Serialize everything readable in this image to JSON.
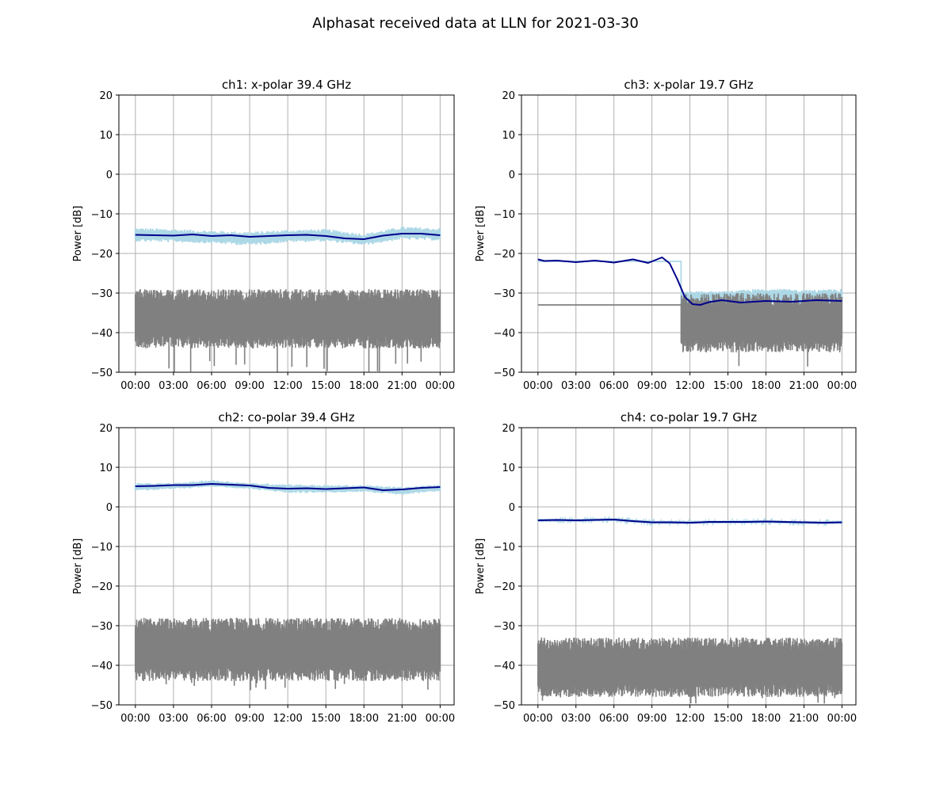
{
  "figure": {
    "title": "Alphasat received data at LLN for 2021-03-30",
    "colors": {
      "raw_signal": "#add8e6",
      "filtered_signal": "#00008b",
      "noise": "#808080",
      "grid": "#b0b0b0",
      "axes": "#000000"
    }
  },
  "chart_data": [
    {
      "type": "line",
      "title": "ch1: x-polar 39.4 GHz",
      "ylabel": "Power [dB]",
      "xlabel": "",
      "ylim": [
        -50,
        20
      ],
      "yticks": [
        -50,
        -40,
        -30,
        -20,
        -10,
        0,
        10,
        20
      ],
      "xlim_hours": [
        -1.3,
        25.1
      ],
      "xticks": [
        "00:00",
        "03:00",
        "06:00",
        "09:00",
        "12:00",
        "15:00",
        "18:00",
        "21:00",
        "00:00"
      ],
      "grid": true,
      "series": [
        {
          "role": "raw",
          "color": "#add8e6",
          "kind": "band",
          "x": [
            0,
            3,
            6,
            9,
            12,
            15,
            18,
            21,
            24
          ],
          "upper": [
            -13.5,
            -13.8,
            -14.2,
            -14.5,
            -14.0,
            -13.8,
            -15.0,
            -13.2,
            -13.6
          ],
          "lower": [
            -17.0,
            -17.2,
            -17.5,
            -18.0,
            -17.2,
            -17.0,
            -18.0,
            -16.5,
            -16.8
          ]
        },
        {
          "role": "filtered",
          "color": "#00008b",
          "kind": "line",
          "x": [
            0,
            1.5,
            3,
            4.5,
            6,
            7.5,
            9,
            10.5,
            12,
            13.5,
            15,
            16.5,
            18,
            19.5,
            21,
            22.5,
            24
          ],
          "y": [
            -15.3,
            -15.4,
            -15.5,
            -15.2,
            -15.6,
            -15.4,
            -15.8,
            -15.6,
            -15.4,
            -15.3,
            -15.6,
            -16.2,
            -16.4,
            -15.5,
            -15.0,
            -15.0,
            -15.4
          ]
        },
        {
          "role": "noise",
          "color": "#808080",
          "kind": "noise",
          "segments": [
            {
              "x0": 0,
              "x1": 24,
              "lo": -44,
              "hi": -29,
              "spike_min": -50
            }
          ]
        }
      ]
    },
    {
      "type": "line",
      "title": "ch3: x-polar 19.7 GHz",
      "ylabel": "Power [dB]",
      "xlabel": "",
      "ylim": [
        -50,
        20
      ],
      "yticks": [
        -50,
        -40,
        -30,
        -20,
        -10,
        0,
        10,
        20
      ],
      "xlim_hours": [
        -1.3,
        25.1
      ],
      "xticks": [
        "00:00",
        "03:00",
        "06:00",
        "09:00",
        "12:00",
        "15:00",
        "18:00",
        "21:00",
        "00:00"
      ],
      "grid": true,
      "series": [
        {
          "role": "raw",
          "color": "#add8e6",
          "kind": "step",
          "x": [
            0,
            11.3,
            11.3,
            11.6
          ],
          "y": [
            -22.0,
            -22.0,
            -31.0,
            -31.0
          ]
        },
        {
          "role": "raw",
          "color": "#add8e6",
          "kind": "band",
          "x": [
            11.3,
            12,
            15,
            18,
            21,
            24
          ],
          "upper": [
            -30.0,
            -29.5,
            -29.5,
            -28.8,
            -29.2,
            -29.0
          ],
          "lower": [
            -33.0,
            -33.5,
            -33.5,
            -33.0,
            -33.2,
            -33.0
          ]
        },
        {
          "role": "filtered",
          "color": "#00008b",
          "kind": "line",
          "x": [
            0,
            0.5,
            1.5,
            3,
            4.5,
            6,
            7.5,
            8.7,
            9.8,
            10.4,
            11.0,
            11.6,
            12.2,
            12.8,
            13.5,
            14.5,
            16,
            18,
            20,
            22,
            24
          ],
          "y": [
            -21.5,
            -21.9,
            -21.8,
            -22.2,
            -21.8,
            -22.3,
            -21.5,
            -22.4,
            -21.0,
            -22.5,
            -26.5,
            -31.0,
            -32.8,
            -33.0,
            -32.3,
            -31.8,
            -32.4,
            -32.0,
            -32.2,
            -31.8,
            -32.0
          ]
        },
        {
          "role": "noise",
          "color": "#808080",
          "kind": "flat",
          "x": [
            0,
            11.3
          ],
          "y": [
            -33,
            -33
          ]
        },
        {
          "role": "noise",
          "color": "#808080",
          "kind": "noise",
          "segments": [
            {
              "x0": 11.3,
              "x1": 24,
              "lo": -45,
              "hi": -30,
              "spike_min": -50
            }
          ]
        }
      ]
    },
    {
      "type": "line",
      "title": "ch2: co-polar 39.4 GHz",
      "ylabel": "Power [dB]",
      "xlabel": "",
      "ylim": [
        -50,
        20
      ],
      "yticks": [
        -50,
        -40,
        -30,
        -20,
        -10,
        0,
        10,
        20
      ],
      "xlim_hours": [
        -1.3,
        25.1
      ],
      "xticks": [
        "00:00",
        "03:00",
        "06:00",
        "09:00",
        "12:00",
        "15:00",
        "18:00",
        "21:00",
        "00:00"
      ],
      "grid": true,
      "series": [
        {
          "role": "raw",
          "color": "#add8e6",
          "kind": "band",
          "x": [
            0,
            3,
            6,
            9,
            12,
            15,
            18,
            21,
            24
          ],
          "upper": [
            6.0,
            6.0,
            6.8,
            6.0,
            5.8,
            5.5,
            5.5,
            5.0,
            5.6
          ],
          "lower": [
            4.0,
            4.5,
            5.0,
            4.5,
            3.5,
            3.5,
            3.8,
            3.0,
            4.0
          ]
        },
        {
          "role": "filtered",
          "color": "#00008b",
          "kind": "line",
          "x": [
            0,
            1.5,
            3,
            4.5,
            6,
            7.5,
            9,
            10.5,
            12,
            13.5,
            15,
            16.5,
            18,
            19.5,
            21,
            22.5,
            24
          ],
          "y": [
            5.2,
            5.3,
            5.5,
            5.5,
            5.8,
            5.6,
            5.4,
            4.8,
            4.6,
            4.7,
            4.5,
            4.7,
            4.9,
            4.2,
            4.4,
            4.8,
            5.0
          ]
        },
        {
          "role": "noise",
          "color": "#808080",
          "kind": "noise",
          "segments": [
            {
              "x0": 0,
              "x1": 24,
              "lo": -44,
              "hi": -28,
              "spike_min": -47
            }
          ]
        }
      ]
    },
    {
      "type": "line",
      "title": "ch4: co-polar 19.7 GHz",
      "ylabel": "Power [dB]",
      "xlabel": "",
      "ylim": [
        -50,
        20
      ],
      "yticks": [
        -50,
        -40,
        -30,
        -20,
        -10,
        0,
        10,
        20
      ],
      "xlim_hours": [
        -1.3,
        25.1
      ],
      "xticks": [
        "00:00",
        "03:00",
        "06:00",
        "09:00",
        "12:00",
        "15:00",
        "18:00",
        "21:00",
        "00:00"
      ],
      "grid": true,
      "series": [
        {
          "role": "raw",
          "color": "#add8e6",
          "kind": "band",
          "x": [
            0,
            3,
            6,
            9,
            12,
            15,
            18,
            21,
            24
          ],
          "upper": [
            -3.0,
            -3.0,
            -2.8,
            -3.5,
            -3.5,
            -3.4,
            -3.3,
            -3.6,
            -3.5
          ],
          "lower": [
            -3.8,
            -3.8,
            -3.6,
            -4.3,
            -4.3,
            -4.2,
            -4.1,
            -4.4,
            -4.3
          ]
        },
        {
          "role": "filtered",
          "color": "#00008b",
          "kind": "line",
          "x": [
            0,
            1.5,
            3,
            4.5,
            6,
            7.5,
            9,
            10.5,
            12,
            13.5,
            15,
            16.5,
            18,
            19.5,
            21,
            22.5,
            24
          ],
          "y": [
            -3.4,
            -3.3,
            -3.4,
            -3.3,
            -3.2,
            -3.6,
            -3.9,
            -3.9,
            -4.0,
            -3.8,
            -3.8,
            -3.8,
            -3.7,
            -3.8,
            -3.9,
            -4.0,
            -3.9
          ]
        },
        {
          "role": "noise",
          "color": "#808080",
          "kind": "noise",
          "segments": [
            {
              "x0": 0,
              "x1": 24,
              "lo": -48,
              "hi": -33,
              "spike_min": -50
            }
          ]
        }
      ]
    }
  ]
}
